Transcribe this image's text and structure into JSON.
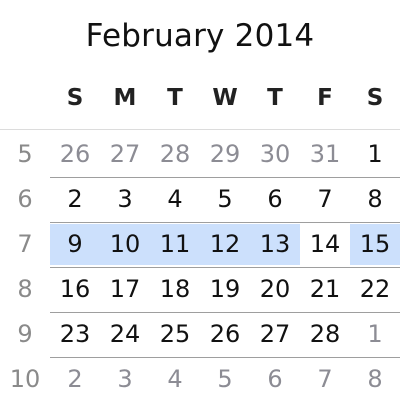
{
  "calendar": {
    "month_title": "February 2014",
    "weekdays": [
      "S",
      "M",
      "T",
      "W",
      "T",
      "F",
      "S"
    ],
    "weeks": [
      {
        "week_number": "5",
        "days": [
          {
            "label": "26",
            "other_month": true,
            "highlighted": false
          },
          {
            "label": "27",
            "other_month": true,
            "highlighted": false
          },
          {
            "label": "28",
            "other_month": true,
            "highlighted": false
          },
          {
            "label": "29",
            "other_month": true,
            "highlighted": false
          },
          {
            "label": "30",
            "other_month": true,
            "highlighted": false
          },
          {
            "label": "31",
            "other_month": true,
            "highlighted": false
          },
          {
            "label": "1",
            "other_month": false,
            "highlighted": false
          }
        ]
      },
      {
        "week_number": "6",
        "days": [
          {
            "label": "2",
            "other_month": false,
            "highlighted": false
          },
          {
            "label": "3",
            "other_month": false,
            "highlighted": false
          },
          {
            "label": "4",
            "other_month": false,
            "highlighted": false
          },
          {
            "label": "5",
            "other_month": false,
            "highlighted": false
          },
          {
            "label": "6",
            "other_month": false,
            "highlighted": false
          },
          {
            "label": "7",
            "other_month": false,
            "highlighted": false
          },
          {
            "label": "8",
            "other_month": false,
            "highlighted": false
          }
        ]
      },
      {
        "week_number": "7",
        "days": [
          {
            "label": "9",
            "other_month": false,
            "highlighted": true
          },
          {
            "label": "10",
            "other_month": false,
            "highlighted": true
          },
          {
            "label": "11",
            "other_month": false,
            "highlighted": true
          },
          {
            "label": "12",
            "other_month": false,
            "highlighted": true
          },
          {
            "label": "13",
            "other_month": false,
            "highlighted": true
          },
          {
            "label": "14",
            "other_month": false,
            "highlighted": false
          },
          {
            "label": "15",
            "other_month": false,
            "highlighted": true
          }
        ]
      },
      {
        "week_number": "8",
        "days": [
          {
            "label": "16",
            "other_month": false,
            "highlighted": false
          },
          {
            "label": "17",
            "other_month": false,
            "highlighted": false
          },
          {
            "label": "18",
            "other_month": false,
            "highlighted": false
          },
          {
            "label": "19",
            "other_month": false,
            "highlighted": false
          },
          {
            "label": "20",
            "other_month": false,
            "highlighted": false
          },
          {
            "label": "21",
            "other_month": false,
            "highlighted": false
          },
          {
            "label": "22",
            "other_month": false,
            "highlighted": false
          }
        ]
      },
      {
        "week_number": "9",
        "days": [
          {
            "label": "23",
            "other_month": false,
            "highlighted": false
          },
          {
            "label": "24",
            "other_month": false,
            "highlighted": false
          },
          {
            "label": "25",
            "other_month": false,
            "highlighted": false
          },
          {
            "label": "26",
            "other_month": false,
            "highlighted": false
          },
          {
            "label": "27",
            "other_month": false,
            "highlighted": false
          },
          {
            "label": "28",
            "other_month": false,
            "highlighted": false
          },
          {
            "label": "1",
            "other_month": true,
            "highlighted": false
          }
        ]
      },
      {
        "week_number": "10",
        "days": [
          {
            "label": "2",
            "other_month": true,
            "highlighted": false
          },
          {
            "label": "3",
            "other_month": true,
            "highlighted": false
          },
          {
            "label": "4",
            "other_month": true,
            "highlighted": false
          },
          {
            "label": "5",
            "other_month": true,
            "highlighted": false
          },
          {
            "label": "6",
            "other_month": true,
            "highlighted": false
          },
          {
            "label": "7",
            "other_month": true,
            "highlighted": false
          },
          {
            "label": "8",
            "other_month": true,
            "highlighted": false
          }
        ]
      }
    ]
  },
  "colors": {
    "highlight": "#cce0fc",
    "other_month_text": "#8c8c94",
    "week_number_text": "#8a8a8a",
    "row_divider": "#9e9e9e"
  }
}
